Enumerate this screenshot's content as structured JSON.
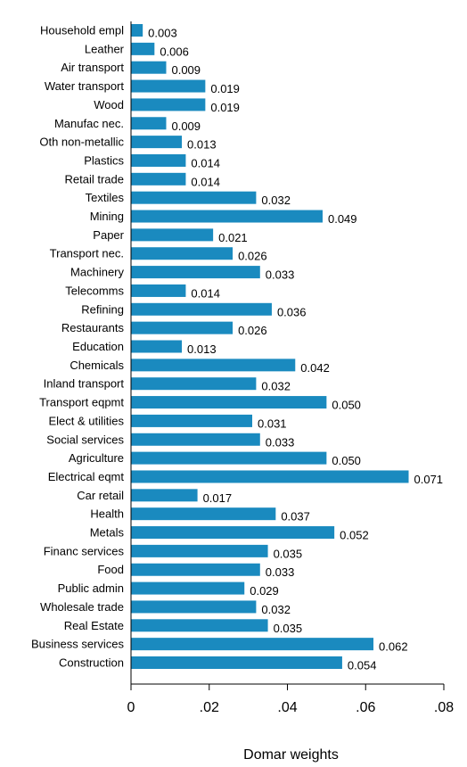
{
  "chart_data": {
    "type": "bar",
    "orientation": "horizontal",
    "categories": [
      "Household empl",
      "Leather",
      "Air transport",
      "Water transport",
      "Wood",
      "Manufac nec.",
      "Oth non-metallic",
      "Plastics",
      "Retail trade",
      "Textiles",
      "Mining",
      "Paper",
      "Transport nec.",
      "Machinery",
      "Telecomms",
      "Refining",
      "Restaurants",
      "Education",
      "Chemicals",
      "Inland transport",
      "Transport eqpmt",
      "Elect & utilities",
      "Social services",
      "Agriculture",
      "Electrical eqmt",
      "Car retail",
      "Health",
      "Metals",
      "Financ services",
      "Food",
      "Public admin",
      "Wholesale trade",
      "Real Estate",
      "Business services",
      "Construction"
    ],
    "values": [
      0.003,
      0.006,
      0.009,
      0.019,
      0.019,
      0.009,
      0.013,
      0.014,
      0.014,
      0.032,
      0.049,
      0.021,
      0.026,
      0.033,
      0.014,
      0.036,
      0.026,
      0.013,
      0.042,
      0.032,
      0.05,
      0.031,
      0.033,
      0.05,
      0.071,
      0.017,
      0.037,
      0.052,
      0.035,
      0.033,
      0.029,
      0.032,
      0.035,
      0.062,
      0.054
    ],
    "value_labels": [
      "0.003",
      "0.006",
      "0.009",
      "0.019",
      "0.019",
      "0.009",
      "0.013",
      "0.014",
      "0.014",
      "0.032",
      "0.049",
      "0.021",
      "0.026",
      "0.033",
      "0.014",
      "0.036",
      "0.026",
      "0.013",
      "0.042",
      "0.032",
      "0.050",
      "0.031",
      "0.033",
      "0.050",
      "0.071",
      "0.017",
      "0.037",
      "0.052",
      "0.035",
      "0.033",
      "0.029",
      "0.032",
      "0.035",
      "0.062",
      "0.054"
    ],
    "xlabel": "Domar weights",
    "xlim": [
      0,
      0.08
    ],
    "xticks": [
      0,
      0.02,
      0.04,
      0.06,
      0.08
    ],
    "xtick_labels": [
      "0",
      ".02",
      ".04",
      ".06",
      ".08"
    ],
    "bar_color": "#1a8abf",
    "grid": false,
    "legend": "none"
  }
}
